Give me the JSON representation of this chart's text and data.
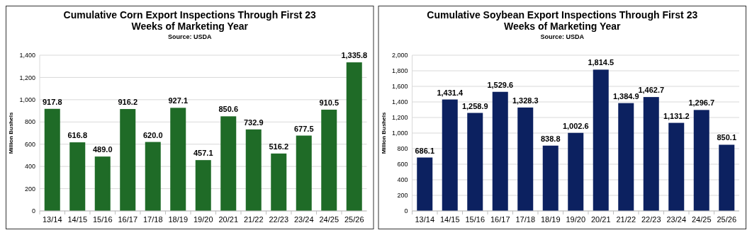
{
  "chart_data": [
    {
      "type": "bar",
      "title": "Cumulative Corn Export Inspections Through First 23 Weeks of Marketing Year",
      "subtitle": "Source: USDA",
      "ylabel": "Million Bushels",
      "categories": [
        "13/14",
        "14/15",
        "15/16",
        "16/17",
        "17/18",
        "18/19",
        "19/20",
        "20/21",
        "21/22",
        "22/23",
        "23/24",
        "24/25",
        "25/26"
      ],
      "values": [
        917.8,
        616.8,
        489.0,
        916.2,
        620.0,
        927.1,
        457.1,
        850.6,
        732.9,
        516.2,
        677.5,
        910.5,
        1335.8
      ],
      "value_labels": [
        "917.8",
        "616.8",
        "489.0",
        "916.2",
        "620.0",
        "927.1",
        "457.1",
        "850.6",
        "732.9",
        "516.2",
        "677.5",
        "910.5",
        "1,335.8"
      ],
      "color": "#1f6b27",
      "ylim": [
        0,
        1400
      ],
      "yticks": [
        0,
        200,
        400,
        600,
        800,
        {
          "value": 1000,
          "label": "1,000"
        },
        {
          "value": 1200,
          "label": "1,200"
        },
        {
          "value": 1400,
          "label": "1,400"
        }
      ],
      "grid": "y"
    },
    {
      "type": "bar",
      "title": "Cumulative Soybean Export Inspections Through First 23 Weeks of Marketing Year",
      "subtitle": "Source: USDA",
      "ylabel": "Million Bushels",
      "categories": [
        "13/14",
        "14/15",
        "15/16",
        "16/17",
        "17/18",
        "18/19",
        "19/20",
        "20/21",
        "21/22",
        "22/23",
        "23/24",
        "24/25",
        "25/26"
      ],
      "values": [
        686.1,
        1431.4,
        1258.9,
        1529.6,
        1328.3,
        838.8,
        1002.6,
        1814.5,
        1384.9,
        1462.7,
        1131.2,
        1296.7,
        850.1
      ],
      "value_labels": [
        "686.1",
        "1,431.4",
        "1,258.9",
        "1,529.6",
        "1,328.3",
        "838.8",
        "1,002.6",
        "1,814.5",
        "1,384.9",
        "1,462.7",
        "1,131.2",
        "1,296.7",
        "850.1"
      ],
      "color": "#0c2160",
      "ylim": [
        0,
        2000
      ],
      "yticks": [
        0,
        200,
        400,
        600,
        800,
        {
          "value": 1000,
          "label": "1,000"
        },
        {
          "value": 1200,
          "label": "1,200"
        },
        {
          "value": 1400,
          "label": "1,400"
        },
        {
          "value": 1600,
          "label": "1,600"
        },
        {
          "value": 1800,
          "label": "1,800"
        },
        {
          "value": 2000,
          "label": "2,000"
        }
      ],
      "grid": "y"
    }
  ]
}
